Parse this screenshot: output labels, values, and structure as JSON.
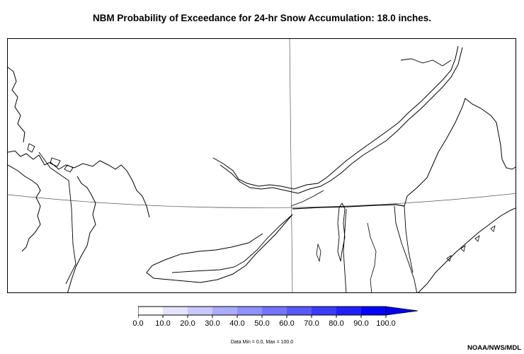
{
  "title": "NBM Probability of Exceedance for 24-hr Snow Accumulation: 18.0 inches.",
  "legend": {
    "ticks": [
      "0.0",
      "10.0",
      "20.0",
      "30.0",
      "40.0",
      "50.0",
      "60.0",
      "70.0",
      "80.0",
      "90.0",
      "100.0"
    ],
    "colors": [
      "#ffffff",
      "#e4e4ff",
      "#c8c8ff",
      "#acacff",
      "#9090ff",
      "#7474ff",
      "#5858ff",
      "#3c3cff",
      "#2020ff",
      "#0404ff"
    ],
    "arrow_color": "#0000f0"
  },
  "data_range": "Data Min = 0.0, Max = 100.0",
  "credit": "NOAA/NWS/MDL"
}
